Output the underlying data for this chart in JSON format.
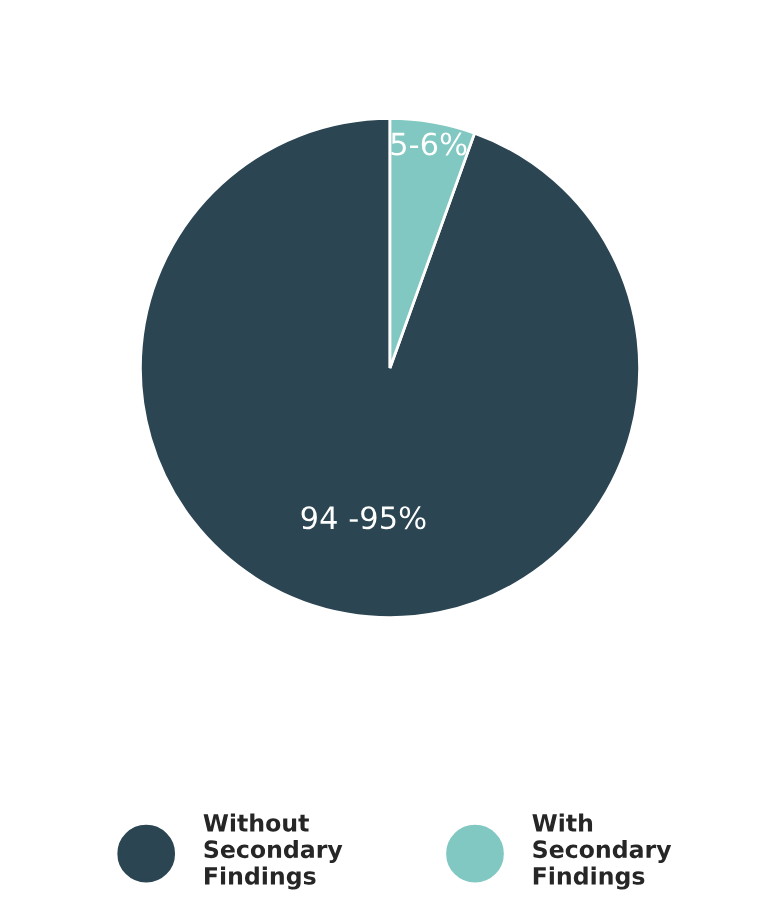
{
  "chart_data": {
    "type": "pie",
    "categories": [
      "Without Secondary Findings",
      "With Secondary Findings"
    ],
    "values": [
      94.5,
      5.5
    ],
    "value_labels": [
      "94 -95%",
      "5-6%"
    ],
    "colors": [
      "#2b4553",
      "#80c8c1"
    ],
    "legend": "bottom"
  }
}
